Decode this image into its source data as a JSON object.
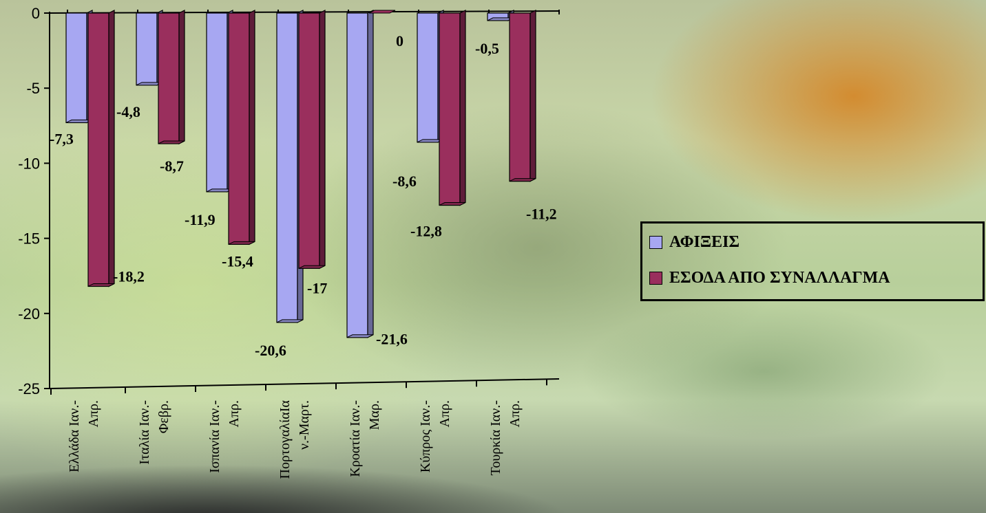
{
  "chart_data": {
    "type": "bar",
    "categories": [
      [
        "Ελλάδα Ιαν.-",
        "Απρ."
      ],
      [
        "Ιταλία Ιαν.-",
        "Φεβρ."
      ],
      [
        "Ισπανία Ιαν.-",
        "Απρ."
      ],
      [
        "ΠορτογαλίαΙα",
        "ν.-Μαρτ."
      ],
      [
        "Κροατία Ιαν.-",
        "Μαρ."
      ],
      [
        "Κύπρος Ιαν.-",
        "Απρ."
      ],
      [
        "Τουρκία Ιαν.-",
        "Απρ."
      ]
    ],
    "series": [
      {
        "name": "ΑΦΙΞΕΙΣ",
        "color": "#a7a7f2",
        "values": [
          -7.3,
          -4.8,
          -11.9,
          -20.6,
          -21.6,
          -8.6,
          -0.5
        ],
        "labels": [
          "-7,3",
          "-4,8",
          "-11,9",
          "-20,6",
          "-21,6",
          "-8,6",
          "-0,5"
        ]
      },
      {
        "name": "ΕΣΟΔΑ ΑΠΟ ΣΥΝΑΛΛΑΓΜΑ",
        "color": "#9a2f5d",
        "values": [
          -18.2,
          -8.7,
          -15.4,
          -17,
          0,
          -12.8,
          -11.2
        ],
        "labels": [
          "-18,2",
          "-8,7",
          "-15,4",
          "-17",
          "0",
          "-12,8",
          "-11,2"
        ]
      }
    ],
    "ylim": [
      -25,
      0
    ],
    "yticks": [
      0,
      -5,
      -10,
      -15,
      -20,
      -25
    ],
    "ytick_labels": [
      "0",
      "-5",
      "-10",
      "-15",
      "-20",
      "-25"
    ],
    "style": "3d-clustered-column",
    "legend": "right"
  }
}
